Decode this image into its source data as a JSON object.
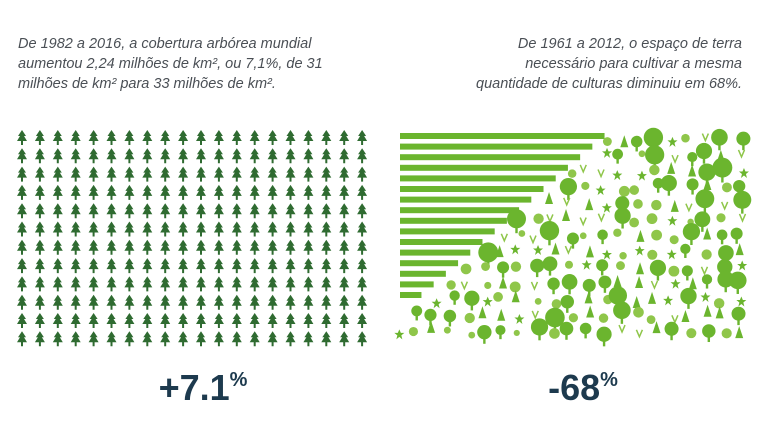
{
  "left": {
    "description": [
      "De 1982 a 2016, a cobertura arbórea mundial",
      "aumentou 2,24 milhões de km², ou 7,1%, de 31",
      "milhões de km² para 33 milhões de km²."
    ],
    "stat": "+7.1",
    "unit": "%"
  },
  "right": {
    "description": [
      "De 1961 a 2012, o espaço de terra",
      "necessário para cultivar a mesma",
      "quantidade de culturas diminuiu em 68%."
    ],
    "stat": "-68",
    "unit": "%"
  }
}
